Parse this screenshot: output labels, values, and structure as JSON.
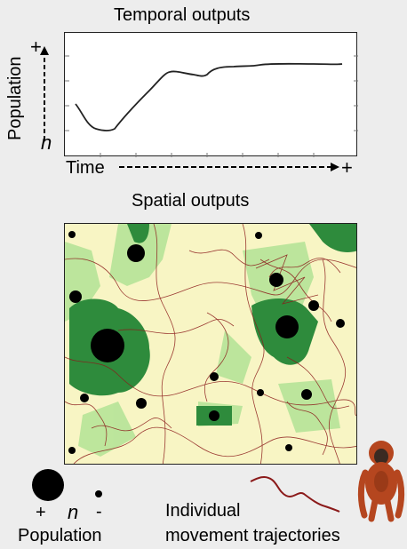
{
  "temporal": {
    "title": "Temporal outputs",
    "y_axis_label": "Population",
    "y_max_symbol": "+",
    "y_min_symbol": "n",
    "x_axis_label": "Time",
    "x_max_symbol": "+"
  },
  "spatial": {
    "title": "Spatial outputs"
  },
  "legend": {
    "plus_symbol": "+",
    "n_symbol": "n",
    "minus_symbol": "-",
    "population_label": "Population",
    "trajectory_label_line1": "Individual",
    "trajectory_label_line2": "movement trajectories"
  },
  "colors": {
    "habitat_light": "#f8f5c4",
    "habitat_green": "#2e8b3c",
    "habitat_pale_green": "#b9e59a",
    "trajectory": "#8b1a1a",
    "population_dot": "#000000",
    "orangutan": "#b5461f"
  },
  "icons": {
    "orangutan": "orangutan-icon",
    "trajectory": "trajectory-line-icon"
  }
}
